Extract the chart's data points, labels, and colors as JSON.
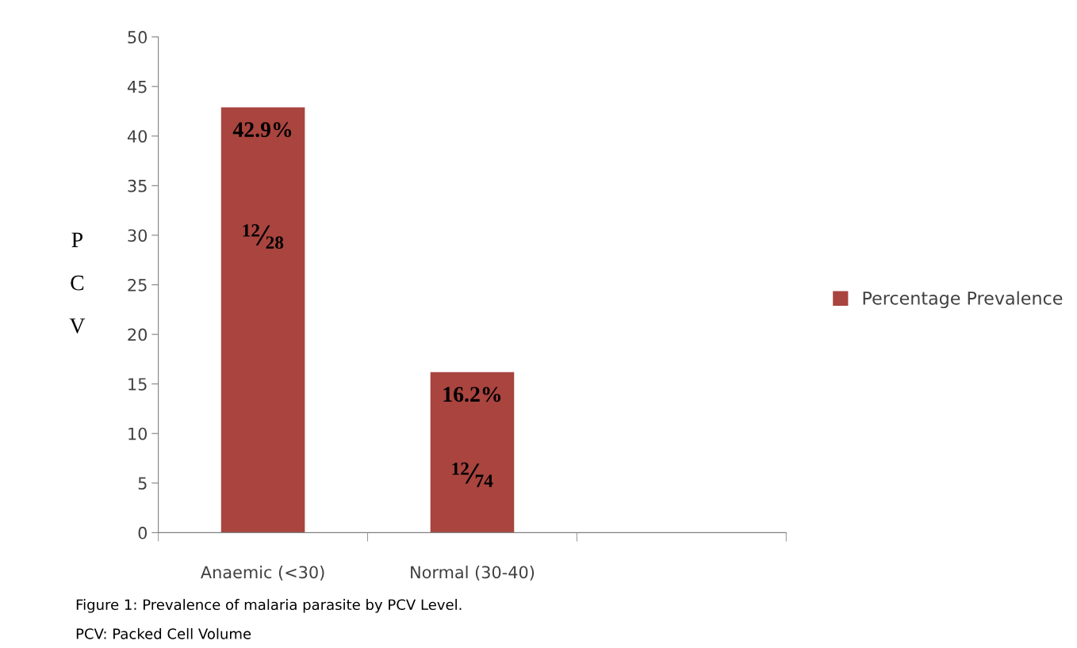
{
  "chart_data": {
    "type": "bar",
    "ylabel": "PCV",
    "categories": [
      "Anaemic (<30)",
      "Normal (30-40)",
      null
    ],
    "series": [
      {
        "name": "Percentage Prevalence",
        "color": "#a9443f",
        "values": [
          42.9,
          16.2,
          null
        ],
        "value_labels": [
          "42.9%",
          "16.2%",
          null
        ]
      }
    ],
    "ylim": [
      0,
      50
    ],
    "yticks": [
      0,
      5,
      10,
      15,
      20,
      25,
      30,
      35,
      40,
      45,
      50
    ],
    "grid": false,
    "legend": "right",
    "annotations": [
      "$^{12}$⁄$_{28}$",
      "$^{12}$⁄$_{74}$",
      "Figure 1: Prevalence of malaria parasite by PCV Level.",
      "PCV: Packed Cell Volume"
    ]
  }
}
